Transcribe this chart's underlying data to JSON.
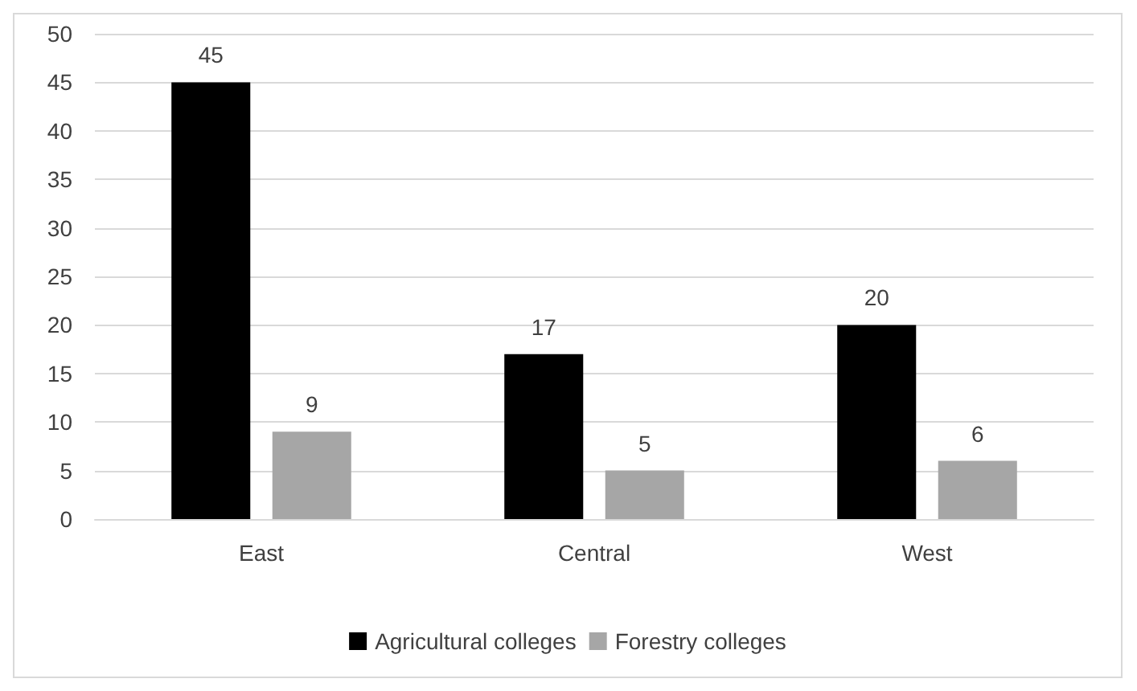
{
  "chart_data": {
    "type": "bar",
    "categories": [
      "East",
      "Central",
      "West"
    ],
    "series": [
      {
        "name": "Agricultural colleges",
        "color": "#000000",
        "values": [
          45,
          17,
          20
        ]
      },
      {
        "name": "Forestry colleges",
        "color": "#a6a6a6",
        "values": [
          9,
          5,
          6
        ]
      }
    ],
    "ylim": [
      0,
      50
    ],
    "yticks": [
      0,
      5,
      10,
      15,
      20,
      25,
      30,
      35,
      40,
      45,
      50
    ],
    "grid": "y",
    "legend": "bottom",
    "data_labels": true
  }
}
